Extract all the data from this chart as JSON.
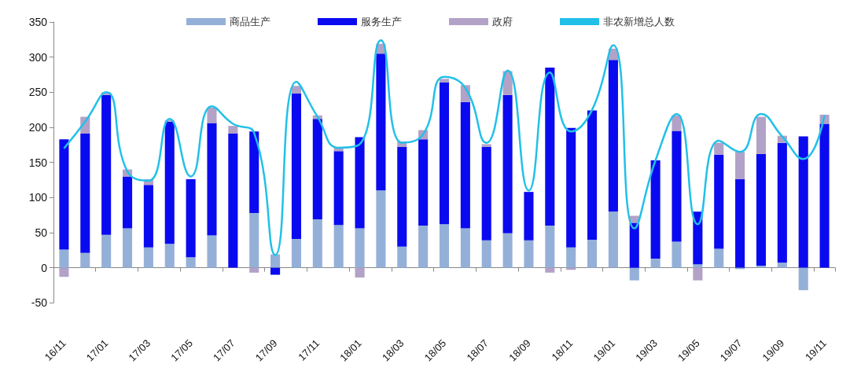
{
  "chart_data": {
    "type": "bar",
    "stacked": true,
    "categories": [
      "16/11",
      null,
      "17/01",
      null,
      "17/03",
      null,
      "17/05",
      null,
      "17/07",
      null,
      "17/09",
      null,
      "17/11",
      null,
      "18/01",
      null,
      "18/03",
      null,
      "18/05",
      null,
      "18/07",
      null,
      "18/09",
      null,
      "18/11",
      null,
      "19/01",
      null,
      "19/03",
      null,
      "19/05",
      null,
      "19/07",
      null,
      "19/09",
      null,
      "19/11"
    ],
    "series": [
      {
        "name": "商品生产",
        "color": "#95b0d8",
        "values": [
          26,
          21,
          47,
          56,
          29,
          34,
          15,
          46,
          0,
          78,
          19,
          41,
          69,
          61,
          56,
          110,
          30,
          60,
          62,
          56,
          39,
          49,
          39,
          60,
          29,
          40,
          80,
          -18,
          13,
          37,
          5,
          27,
          -2,
          3,
          7,
          -32,
          0
        ]
      },
      {
        "name": "服务生产",
        "color": "#0a0af0",
        "values": [
          157,
          170,
          199,
          74,
          89,
          174,
          111,
          160,
          191,
          116,
          -10,
          207,
          143,
          105,
          130,
          195,
          142,
          123,
          202,
          180,
          133,
          197,
          69,
          225,
          170,
          184,
          216,
          64,
          140,
          158,
          75,
          134,
          126,
          159,
          171,
          187,
          205
        ]
      },
      {
        "name": "政府",
        "color": "#b3a2c7",
        "values": [
          -13,
          24,
          4,
          10,
          8,
          2,
          0,
          22,
          11,
          -7,
          0,
          11,
          5,
          5,
          -14,
          14,
          8,
          13,
          5,
          24,
          4,
          34,
          0,
          -7,
          -3,
          0,
          16,
          10,
          0,
          22,
          -18,
          17,
          39,
          53,
          10,
          0,
          13
        ]
      },
      {
        "name": "非农新增总人数",
        "type": "line",
        "color": "#22c0e8",
        "values": [
          170,
          208,
          250,
          137,
          124,
          212,
          130,
          230,
          205,
          192,
          18,
          265,
          215,
          171,
          176,
          324,
          178,
          190,
          272,
          256,
          178,
          281,
          110,
          278,
          194,
          225,
          317,
          56,
          153,
          219,
          62,
          181,
          165,
          219,
          187,
          155,
          217
        ]
      }
    ],
    "ylim": [
      -50,
      350
    ],
    "yticks": [
      -50,
      0,
      50,
      100,
      150,
      200,
      250,
      300,
      350
    ],
    "legend": "top",
    "marker": "none",
    "line_style": "solid"
  }
}
